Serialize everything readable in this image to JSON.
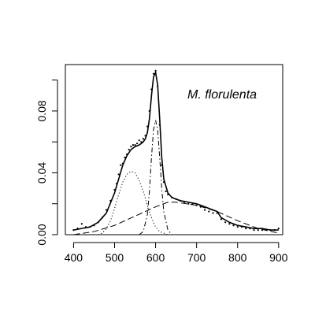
{
  "chart_data": {
    "type": "line",
    "annotation": "M. florulenta",
    "xlim": [
      380,
      910
    ],
    "ylim": [
      0,
      0.11
    ],
    "x_ticks": [
      400,
      500,
      600,
      700,
      800,
      900
    ],
    "y_ticks": [
      0.0,
      0.02,
      0.04,
      0.06,
      0.08,
      0.1
    ],
    "y_tick_labels": [
      "0.00",
      "",
      "0.04",
      "",
      "0.08",
      ""
    ],
    "series": [
      {
        "style": "points",
        "x": [
          400,
          410,
          420,
          430,
          440,
          450,
          460,
          470,
          480,
          490,
          500,
          505,
          510,
          515,
          520,
          525,
          530,
          535,
          540,
          545,
          550,
          555,
          560,
          565,
          570,
          575,
          580,
          585,
          590,
          595,
          600,
          605,
          610,
          615,
          620,
          625,
          630,
          640,
          650,
          660,
          670,
          680,
          690,
          700,
          710,
          720,
          730,
          740,
          750,
          760,
          770,
          780,
          790,
          800,
          810,
          820,
          830,
          840,
          850,
          860,
          870,
          880,
          890,
          900
        ],
        "y": [
          0.003,
          0.004,
          0.007,
          0.005,
          0.005,
          0.006,
          0.008,
          0.011,
          0.016,
          0.022,
          0.029,
          0.033,
          0.039,
          0.045,
          0.046,
          0.05,
          0.052,
          0.055,
          0.057,
          0.058,
          0.058,
          0.059,
          0.061,
          0.06,
          0.062,
          0.064,
          0.07,
          0.08,
          0.094,
          0.104,
          0.106,
          0.096,
          0.071,
          0.045,
          0.034,
          0.028,
          0.026,
          0.024,
          0.023,
          0.022,
          0.021,
          0.02,
          0.02,
          0.019,
          0.018,
          0.016,
          0.015,
          0.014,
          0.014,
          0.01,
          0.008,
          0.007,
          0.006,
          0.005,
          0.005,
          0.004,
          0.004,
          0.003,
          0.003,
          0.003,
          0.003,
          0.003,
          0.003,
          0.004
        ]
      },
      {
        "style": "solid",
        "x": [
          400,
          420,
          440,
          460,
          480,
          500,
          510,
          520,
          530,
          540,
          550,
          560,
          570,
          575,
          580,
          585,
          590,
          595,
          600,
          605,
          610,
          615,
          620,
          630,
          640,
          660,
          680,
          700,
          720,
          740,
          750,
          760,
          780,
          800,
          820,
          840,
          860,
          880,
          900
        ],
        "y": [
          0.003,
          0.004,
          0.005,
          0.008,
          0.014,
          0.027,
          0.036,
          0.045,
          0.051,
          0.055,
          0.057,
          0.058,
          0.06,
          0.062,
          0.066,
          0.075,
          0.09,
          0.102,
          0.105,
          0.097,
          0.075,
          0.05,
          0.036,
          0.027,
          0.024,
          0.022,
          0.021,
          0.02,
          0.018,
          0.016,
          0.015,
          0.011,
          0.008,
          0.006,
          0.005,
          0.004,
          0.004,
          0.003,
          0.003
        ]
      },
      {
        "style": "dotted",
        "x": [
          460,
          470,
          480,
          490,
          500,
          510,
          520,
          530,
          540,
          550,
          560,
          570,
          580,
          590,
          600,
          610,
          620,
          630
        ],
        "y": [
          0.0,
          0.001,
          0.004,
          0.009,
          0.017,
          0.026,
          0.034,
          0.039,
          0.041,
          0.04,
          0.035,
          0.028,
          0.019,
          0.011,
          0.005,
          0.002,
          0.001,
          0.0
        ]
      },
      {
        "style": "dashdot",
        "x": [
          560,
          570,
          580,
          585,
          590,
          595,
          600,
          605,
          610,
          615,
          620,
          630,
          640
        ],
        "y": [
          0.0,
          0.002,
          0.013,
          0.028,
          0.05,
          0.068,
          0.074,
          0.068,
          0.05,
          0.03,
          0.015,
          0.003,
          0.0
        ]
      },
      {
        "style": "dashed",
        "x": [
          400,
          450,
          500,
          550,
          600,
          630,
          650,
          700,
          750,
          800,
          850,
          900
        ],
        "y": [
          0.0,
          0.002,
          0.006,
          0.012,
          0.018,
          0.021,
          0.021,
          0.019,
          0.015,
          0.009,
          0.004,
          0.001
        ]
      }
    ]
  }
}
